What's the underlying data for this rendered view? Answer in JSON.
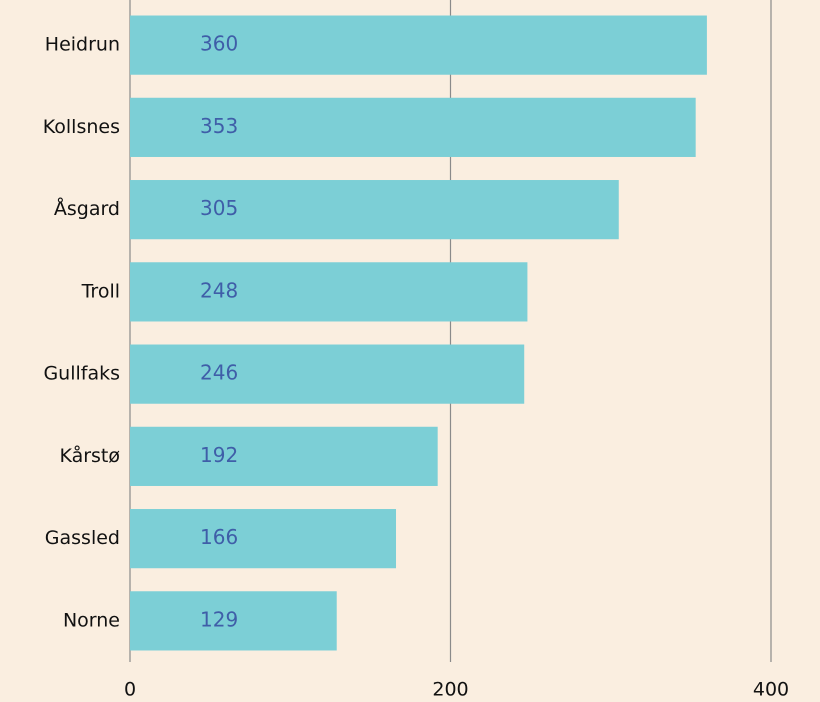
{
  "chart_data": {
    "type": "bar",
    "orientation": "horizontal",
    "categories": [
      "Heidrun",
      "Kollsnes",
      "Åsgard",
      "Troll",
      "Gullfaks",
      "Kårstø",
      "Gassled",
      "Norne"
    ],
    "values": [
      360,
      353,
      305,
      248,
      246,
      192,
      166,
      129
    ],
    "color": "#7ccfd6",
    "xlim": [
      0,
      400
    ],
    "xticks": [
      0,
      200,
      400
    ],
    "grid": true
  }
}
